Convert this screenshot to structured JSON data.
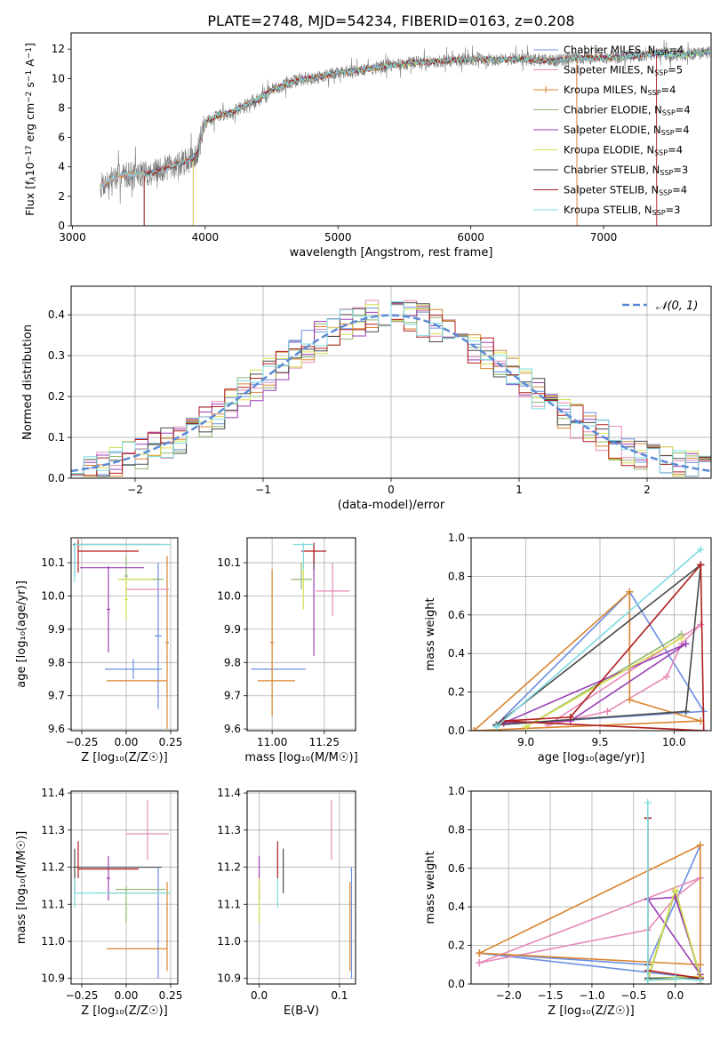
{
  "figure_title": "PLATE=2748, MJD=54234, FIBERID=0163, z=0.208",
  "series": [
    {
      "name": "Chabrier MILES, N$_{SSP}$=4",
      "legend": "Chabrier MILES, N",
      "sub": "SSP",
      "tail": "=4",
      "color": "#6b8fe0"
    },
    {
      "name": "Salpeter MILES, N_SSP=5",
      "legend": "Salpeter MILES, N",
      "sub": "SSP",
      "tail": "=5",
      "color": "#e58ab8"
    },
    {
      "name": "Kroupa MILES, N_SSP=4",
      "legend": "Kroupa MILES, N",
      "sub": "SSP",
      "tail": "=4",
      "color": "#d98530"
    },
    {
      "name": "Chabrier ELODIE, N_SSP=4",
      "legend": "Chabrier ELODIE, N",
      "sub": "SSP",
      "tail": "=4",
      "color": "#8fb570"
    },
    {
      "name": "Salpeter ELODIE, N_SSP=4",
      "legend": "Salpeter ELODIE, N",
      "sub": "SSP",
      "tail": "=4",
      "color": "#9a3fb5"
    },
    {
      "name": "Kroupa ELODIE, N_SSP=4",
      "legend": "Kroupa ELODIE, N",
      "sub": "SSP",
      "tail": "=4",
      "color": "#d8e050"
    },
    {
      "name": "Chabrier STELIB, N_SSP=3",
      "legend": "Chabrier STELIB, N",
      "sub": "SSP",
      "tail": "=3",
      "color": "#4a4a4a"
    },
    {
      "name": "Salpeter STELIB, N_SSP=4",
      "legend": "Salpeter STELIB, N",
      "sub": "SSP",
      "tail": "=4",
      "color": "#b01e1e"
    },
    {
      "name": "Kroupa STELIB, N_SSP=3",
      "legend": "Kroupa STELIB, N",
      "sub": "SSP",
      "tail": "=3",
      "color": "#7fdbe0"
    }
  ],
  "chart_data": [
    {
      "id": "spectrum",
      "type": "line",
      "xlabel": "wavelength [Angstrom, rest frame]",
      "ylabel_main": "Flux [f",
      "ylabel_lam": "λ",
      "ylabel_mid": "10",
      "ylabel_exp1": "−17",
      "ylabel_rest": " erg cm",
      "ylabel_exp2": "−2",
      "ylabel_s": " s",
      "ylabel_exp3": "−1",
      "ylabel_A": " A",
      "ylabel_exp4": "−1",
      "ylabel_end": "]",
      "xlim": [
        2990,
        7810
      ],
      "ylim": [
        0,
        13.1
      ],
      "xticks": [
        3000,
        4000,
        5000,
        6000,
        7000
      ],
      "yticks": [
        0,
        2,
        4,
        6,
        8,
        10,
        12
      ],
      "continuum_x": [
        3210,
        3300,
        3400,
        3500,
        3600,
        3700,
        3800,
        3900,
        3950,
        4000,
        4100,
        4200,
        4300,
        4400,
        4500,
        4600,
        4700,
        4800,
        4900,
        5000,
        5200,
        5400,
        5600,
        5800,
        6000,
        6200,
        6400,
        6600,
        6800,
        7000,
        7200,
        7400,
        7600,
        7800
      ],
      "continuum_y": [
        2.7,
        3.2,
        3.5,
        3.5,
        3.6,
        3.9,
        4.2,
        4.5,
        5.2,
        7.0,
        7.5,
        7.7,
        8.2,
        8.6,
        9.2,
        9.6,
        9.9,
        10.0,
        10.2,
        10.4,
        10.6,
        10.9,
        11.1,
        11.2,
        11.3,
        11.3,
        11.3,
        11.2,
        11.4,
        11.4,
        11.5,
        11.7,
        11.6,
        11.8
      ],
      "series_start": [
        3210,
        3210,
        3210,
        3210,
        3210,
        3210,
        3210,
        3210,
        3210
      ],
      "series_cut": [
        null,
        null,
        null,
        3910,
        3910,
        3910,
        3540,
        3540,
        null
      ],
      "series_end": [
        7800,
        6800,
        6800,
        7800,
        7800,
        7800,
        7800,
        7400,
        7800
      ]
    },
    {
      "id": "residuals",
      "type": "step-histogram",
      "xlabel": "(data-model)/error",
      "ylabel": "Normed distribution",
      "xlim": [
        -2.5,
        2.5
      ],
      "ylim": [
        0,
        0.47
      ],
      "xticks": [
        -2,
        -1,
        0,
        1,
        2
      ],
      "yticks": [
        0.0,
        0.1,
        0.2,
        0.3,
        0.4
      ],
      "bin_width": 0.1,
      "gaussian_label": "𝒩(0, 1)",
      "gaussian_color": "#5b8ad6"
    },
    {
      "id": "age_vs_Z",
      "type": "errorbar",
      "xlabel": "Z [log₁₀(Z/Z☉)]",
      "ylabel": "age  [log₁₀(age/yr)]",
      "xlim": [
        -0.31,
        0.29
      ],
      "ylim": [
        9.595,
        10.175
      ],
      "xticks": [
        -0.25,
        0.0,
        0.25
      ],
      "xticklabels": [
        "−0.25",
        "0.00",
        "0.25"
      ],
      "yticks": [
        9.6,
        9.7,
        9.8,
        9.9,
        10.0,
        10.1
      ],
      "points": [
        {
          "s": 0,
          "x": 0.04,
          "xerr": 0.16,
          "y": 9.78,
          "yerr": 0.03
        },
        {
          "s": 0,
          "x": 0.18,
          "xerr": 0.02,
          "y": 9.88,
          "yerr": 0.22
        },
        {
          "s": 2,
          "x": 0.06,
          "xerr": 0.17,
          "y": 9.745,
          "yerr": 0.0
        },
        {
          "s": 2,
          "x": 0.23,
          "xerr": 0.01,
          "y": 9.86,
          "yerr": 0.26
        },
        {
          "s": 1,
          "x": 0.12,
          "xerr": 0.12,
          "y": 10.02,
          "yerr": 0.0
        },
        {
          "s": 3,
          "x": 0.09,
          "xerr": 0.12,
          "y": 10.05,
          "yerr": 0.0
        },
        {
          "s": 3,
          "x": 0.0,
          "xerr": 0.01,
          "y": 10.06,
          "yerr": 0.06
        },
        {
          "s": 4,
          "x": -0.08,
          "xerr": 0.18,
          "y": 10.085,
          "yerr": 0.0
        },
        {
          "s": 4,
          "x": -0.1,
          "xerr": 0.01,
          "y": 9.96,
          "yerr": 0.13
        },
        {
          "s": 5,
          "x": 0.05,
          "xerr": 0.1,
          "y": 10.05,
          "yerr": 0.0
        },
        {
          "s": 5,
          "x": 0.0,
          "xerr": 0.01,
          "y": 9.99,
          "yerr": 0.06
        },
        {
          "s": 6,
          "x": -0.05,
          "xerr": 0.25,
          "y": 10.155,
          "yerr": 0.0
        },
        {
          "s": 6,
          "x": -0.29,
          "xerr": 0.005,
          "y": 10.11,
          "yerr": 0.05
        },
        {
          "s": 7,
          "x": -0.1,
          "xerr": 0.17,
          "y": 10.135,
          "yerr": 0.0
        },
        {
          "s": 7,
          "x": -0.27,
          "xerr": 0.005,
          "y": 10.12,
          "yerr": 0.05
        },
        {
          "s": 8,
          "x": -0.02,
          "xerr": 0.27,
          "y": 10.155,
          "yerr": 0.0
        },
        {
          "s": 8,
          "x": -0.29,
          "xerr": 0.005,
          "y": 10.1,
          "yerr": 0.06
        }
      ]
    },
    {
      "id": "age_vs_mass",
      "type": "errorbar",
      "xlabel": "mass [log₁₀(M/M☉)]",
      "ylabel": "",
      "xlim": [
        10.88,
        11.4
      ],
      "ylim": [
        9.595,
        10.175
      ],
      "xticks": [
        11.0,
        11.25
      ],
      "xticklabels": [
        "11.00",
        "11.25"
      ],
      "yticks": [
        9.6,
        9.7,
        9.8,
        9.9,
        10.0,
        10.1
      ],
      "points": [
        {
          "s": 0,
          "x": 11.03,
          "xerr": 0.13,
          "y": 9.78,
          "yerr": 0.0
        },
        {
          "s": 2,
          "x": 11.0,
          "xerr": 0.01,
          "y": 9.86,
          "yerr": 0.22
        },
        {
          "s": 2,
          "x": 11.02,
          "xerr": 0.09,
          "y": 9.745,
          "yerr": 0.0
        },
        {
          "s": 1,
          "x": 11.29,
          "xerr": 0.08,
          "y": 10.015,
          "yerr": 0.0
        },
        {
          "s": 1,
          "x": 11.29,
          "xerr": 0.005,
          "y": 10.02,
          "yerr": 0.08
        },
        {
          "s": 3,
          "x": 11.14,
          "xerr": 0.05,
          "y": 10.05,
          "yerr": 0.0
        },
        {
          "s": 3,
          "x": 11.14,
          "xerr": 0.005,
          "y": 10.06,
          "yerr": 0.04
        },
        {
          "s": 4,
          "x": 11.2,
          "xerr": 0.005,
          "y": 9.98,
          "yerr": 0.16
        },
        {
          "s": 5,
          "x": 11.15,
          "xerr": 0.005,
          "y": 10.04,
          "yerr": 0.08
        },
        {
          "s": 6,
          "x": 11.2,
          "xerr": 0.005,
          "y": 10.12,
          "yerr": 0.04
        },
        {
          "s": 7,
          "x": 11.2,
          "xerr": 0.06,
          "y": 10.135,
          "yerr": 0.0
        },
        {
          "s": 7,
          "x": 11.2,
          "xerr": 0.005,
          "y": 10.13,
          "yerr": 0.03
        },
        {
          "s": 8,
          "x": 11.15,
          "xerr": 0.05,
          "y": 10.155,
          "yerr": 0.0
        },
        {
          "s": 8,
          "x": 11.15,
          "xerr": 0.005,
          "y": 10.12,
          "yerr": 0.04
        }
      ]
    },
    {
      "id": "weight_vs_age",
      "type": "line",
      "xlabel": "age  [log₁₀(age/yr)]",
      "ylabel": "mass weight",
      "xlim": [
        8.63,
        10.25
      ],
      "ylim": [
        0,
        1.0
      ],
      "xticks": [
        9.0,
        9.5,
        10.0
      ],
      "xticklabels": [
        "9.0",
        "9.5",
        "10.0"
      ],
      "yticks": [
        0.0,
        0.2,
        0.4,
        0.6,
        0.8,
        1.0
      ],
      "lines": [
        {
          "s": 0,
          "x": [
            8.8,
            9.7,
            10.2,
            8.8
          ],
          "y": [
            0.03,
            0.72,
            0.1,
            0.03
          ]
        },
        {
          "s": 1,
          "x": [
            9.15,
            9.55,
            9.95,
            10.05,
            10.18,
            9.15
          ],
          "y": [
            0.03,
            0.1,
            0.28,
            0.45,
            0.55,
            0.03
          ]
        },
        {
          "s": 2,
          "x": [
            8.65,
            9.7,
            9.7,
            10.18,
            8.65
          ],
          "y": [
            0.0,
            0.72,
            0.16,
            0.05,
            0.0
          ]
        },
        {
          "s": 3,
          "x": [
            9.0,
            10.05,
            9.0
          ],
          "y": [
            0.02,
            0.5,
            0.02
          ]
        },
        {
          "s": 4,
          "x": [
            8.85,
            9.3,
            10.08,
            8.85
          ],
          "y": [
            0.04,
            0.05,
            0.45,
            0.04
          ]
        },
        {
          "s": 5,
          "x": [
            9.0,
            10.05,
            9.0
          ],
          "y": [
            0.02,
            0.48,
            0.02
          ]
        },
        {
          "s": 6,
          "x": [
            8.8,
            10.08,
            10.18,
            8.8
          ],
          "y": [
            0.03,
            0.1,
            0.86,
            0.03
          ]
        },
        {
          "s": 7,
          "x": [
            8.85,
            9.3,
            10.18,
            10.2,
            8.85
          ],
          "y": [
            0.05,
            0.07,
            0.86,
            0.0,
            0.05
          ]
        },
        {
          "s": 8,
          "x": [
            8.8,
            10.18,
            8.8
          ],
          "y": [
            0.02,
            0.94,
            0.02
          ]
        }
      ]
    },
    {
      "id": "mass_vs_Z",
      "type": "errorbar",
      "xlabel": "Z [log₁₀(Z/Z☉)]",
      "ylabel": "mass [log₁₀(M/M☉)]",
      "xlim": [
        -0.31,
        0.29
      ],
      "ylim": [
        10.885,
        11.405
      ],
      "xticks": [
        -0.25,
        0.0,
        0.25
      ],
      "xticklabels": [
        "−0.25",
        "0.00",
        "0.25"
      ],
      "yticks": [
        10.9,
        11.0,
        11.1,
        11.2,
        11.3,
        11.4
      ],
      "points": [
        {
          "s": 0,
          "x": -0.05,
          "xerr": 0.23,
          "y": 11.2,
          "yerr": 0.0
        },
        {
          "s": 0,
          "x": 0.18,
          "xerr": 0.005,
          "y": 11.05,
          "yerr": 0.15
        },
        {
          "s": 2,
          "x": 0.06,
          "xerr": 0.17,
          "y": 10.98,
          "yerr": 0.0
        },
        {
          "s": 2,
          "x": 0.23,
          "xerr": 0.005,
          "y": 11.04,
          "yerr": 0.12
        },
        {
          "s": 1,
          "x": 0.12,
          "xerr": 0.12,
          "y": 11.29,
          "yerr": 0.0
        },
        {
          "s": 1,
          "x": 0.12,
          "xerr": 0.005,
          "y": 11.3,
          "yerr": 0.08
        },
        {
          "s": 3,
          "x": 0.08,
          "xerr": 0.14,
          "y": 11.14,
          "yerr": 0.0
        },
        {
          "s": 3,
          "x": 0.0,
          "xerr": 0.005,
          "y": 11.1,
          "yerr": 0.05
        },
        {
          "s": 4,
          "x": -0.1,
          "xerr": 0.01,
          "y": 11.17,
          "yerr": 0.06
        },
        {
          "s": 5,
          "x": 0.05,
          "xerr": 0.2,
          "y": 11.13,
          "yerr": 0.0
        },
        {
          "s": 6,
          "x": -0.05,
          "xerr": 0.25,
          "y": 11.2,
          "yerr": 0.0
        },
        {
          "s": 6,
          "x": -0.29,
          "xerr": 0.005,
          "y": 11.19,
          "yerr": 0.06
        },
        {
          "s": 7,
          "x": -0.1,
          "xerr": 0.17,
          "y": 11.195,
          "yerr": 0.0
        },
        {
          "s": 7,
          "x": -0.27,
          "xerr": 0.005,
          "y": 11.22,
          "yerr": 0.05
        },
        {
          "s": 8,
          "x": -0.02,
          "xerr": 0.27,
          "y": 11.13,
          "yerr": 0.0
        },
        {
          "s": 8,
          "x": -0.29,
          "xerr": 0.005,
          "y": 11.13,
          "yerr": 0.04
        }
      ]
    },
    {
      "id": "mass_vs_ebv",
      "type": "errorbar",
      "xlabel": "E(B-V)",
      "ylabel": "",
      "xlim": [
        -0.015,
        0.12
      ],
      "ylim": [
        10.885,
        11.405
      ],
      "xticks": [
        0.0,
        0.1
      ],
      "xticklabels": [
        "0.0",
        "0.1"
      ],
      "yticks": [
        10.9,
        11.0,
        11.1,
        11.2,
        11.3,
        11.4
      ],
      "points": [
        {
          "s": 0,
          "x": 0.115,
          "xerr": 0.0,
          "y": 11.05,
          "yerr": 0.15
        },
        {
          "s": 2,
          "x": 0.113,
          "xerr": 0.0,
          "y": 11.04,
          "yerr": 0.12
        },
        {
          "s": 1,
          "x": 0.09,
          "xerr": 0.0,
          "y": 11.3,
          "yerr": 0.08
        },
        {
          "s": 3,
          "x": 0.0,
          "xerr": 0.0,
          "y": 11.1,
          "yerr": 0.05
        },
        {
          "s": 4,
          "x": 0.0,
          "xerr": 0.0,
          "y": 11.17,
          "yerr": 0.06
        },
        {
          "s": 5,
          "x": 0.0,
          "xerr": 0.0,
          "y": 11.11,
          "yerr": 0.06
        },
        {
          "s": 6,
          "x": 0.03,
          "xerr": 0.0,
          "y": 11.19,
          "yerr": 0.06
        },
        {
          "s": 7,
          "x": 0.023,
          "xerr": 0.0,
          "y": 11.22,
          "yerr": 0.05
        },
        {
          "s": 8,
          "x": 0.023,
          "xerr": 0.0,
          "y": 11.13,
          "yerr": 0.04
        }
      ]
    },
    {
      "id": "weight_vs_Z",
      "type": "line",
      "xlabel": "Z [log₁₀(Z/Z☉)]",
      "ylabel": "mass weight",
      "xlim": [
        -2.45,
        0.43
      ],
      "ylim": [
        0,
        1.0
      ],
      "xticks": [
        -2.0,
        -1.5,
        -1.0,
        -0.5,
        0.0
      ],
      "xticklabels": [
        "−2.0",
        "−1.5",
        "−1.0",
        "−0.5",
        "0.0"
      ],
      "yticks": [
        0.0,
        0.2,
        0.4,
        0.6,
        0.8,
        1.0
      ],
      "lines": [
        {
          "s": 0,
          "x": [
            -2.35,
            -0.33,
            0.3,
            0.3,
            -2.35
          ],
          "y": [
            0.16,
            0.1,
            0.72,
            0.03,
            0.16
          ]
        },
        {
          "s": 1,
          "x": [
            -2.35,
            -0.33,
            0.0,
            0.3,
            -2.35
          ],
          "y": [
            0.11,
            0.28,
            0.45,
            0.55,
            0.11
          ]
        },
        {
          "s": 2,
          "x": [
            -2.35,
            0.3,
            0.3,
            -2.35
          ],
          "y": [
            0.16,
            0.72,
            0.1,
            0.16
          ]
        },
        {
          "s": 3,
          "x": [
            -0.33,
            0.0,
            0.3,
            -0.33
          ],
          "y": [
            0.02,
            0.48,
            0.03,
            0.02
          ]
        },
        {
          "s": 4,
          "x": [
            -0.33,
            0.0,
            0.3,
            -0.33
          ],
          "y": [
            0.44,
            0.45,
            0.05,
            0.44
          ]
        },
        {
          "s": 5,
          "x": [
            -0.33,
            0.0,
            0.3,
            -0.33
          ],
          "y": [
            0.03,
            0.49,
            0.04,
            0.03
          ]
        },
        {
          "s": 6,
          "x": [
            -0.33,
            -0.33,
            -0.33,
            0.3
          ],
          "y": [
            0.86,
            0.1,
            0.03,
            0.03
          ]
        },
        {
          "s": 7,
          "x": [
            -0.33,
            -0.33,
            0.3,
            0.3
          ],
          "y": [
            0.86,
            0.07,
            0.03,
            0.0
          ]
        },
        {
          "s": 8,
          "x": [
            -0.33,
            -0.33,
            0.0,
            0.3
          ],
          "y": [
            0.94,
            0.02,
            0.03,
            0.02
          ]
        }
      ]
    }
  ]
}
